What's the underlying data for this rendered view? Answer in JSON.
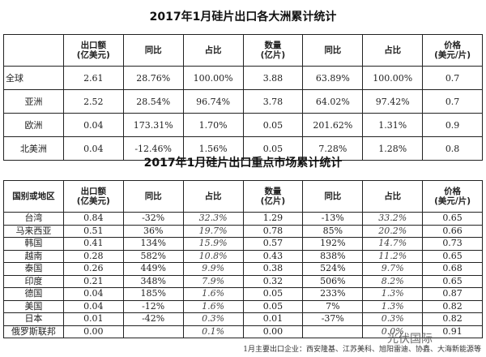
{
  "table1": {
    "title": "2017年1月硅片出口各大洲累计统计",
    "headers": [
      "",
      "出口额\n(亿美元)",
      "同比",
      "占比",
      "数量\n(亿片)",
      "同比",
      "占比",
      "价格\n(美元/片)"
    ],
    "rows": [
      [
        "全球",
        "2.61",
        "28.76%",
        "100.00%",
        "3.88",
        "63.89%",
        "100.00%",
        "0.7"
      ],
      [
        "亚洲",
        "2.52",
        "28.54%",
        "96.74%",
        "3.78",
        "64.02%",
        "97.42%",
        "0.7"
      ],
      [
        "欧洲",
        "0.04",
        "173.31%",
        "1.70%",
        "0.05",
        "201.62%",
        "1.31%",
        "0.9"
      ],
      [
        "北美洲",
        "0.04",
        "-12.46%",
        "1.56%",
        "0.05",
        "7.28%",
        "1.28%",
        "0.8"
      ]
    ]
  },
  "table2": {
    "title": "2017年1月硅片出口重点市场累计统计",
    "headers": [
      "国别或地区",
      "出口额\n(亿美元)",
      "同比",
      "占比",
      "数量\n(亿片)",
      "同比",
      "占比",
      "价格\n(美元/片)"
    ],
    "rows": [
      [
        "台湾",
        "0.84",
        "-32%",
        "32.3%",
        "1.29",
        "-13%",
        "33.2%",
        "0.65"
      ],
      [
        "马来西亚",
        "0.51",
        "36%",
        "19.7%",
        "0.78",
        "85%",
        "20.2%",
        "0.66"
      ],
      [
        "韩国",
        "0.41",
        "134%",
        "15.9%",
        "0.57",
        "192%",
        "14.7%",
        "0.73"
      ],
      [
        "越南",
        "0.28",
        "582%",
        "10.8%",
        "0.43",
        "838%",
        "11.2%",
        "0.65"
      ],
      [
        "泰国",
        "0.26",
        "449%",
        "9.9%",
        "0.38",
        "524%",
        "9.7%",
        "0.68"
      ],
      [
        "印度",
        "0.21",
        "348%",
        "7.9%",
        "0.32",
        "506%",
        "8.2%",
        "0.65"
      ],
      [
        "德国",
        "0.04",
        "185%",
        "1.6%",
        "0.05",
        "233%",
        "1.3%",
        "0.87"
      ],
      [
        "美国",
        "0.04",
        "-12%",
        "1.6%",
        "0.05",
        "7%",
        "1.3%",
        "0.82"
      ],
      [
        "日本",
        "0.01",
        "-42%",
        "0.3%",
        "0.01",
        "-37%",
        "0.3%",
        "0.82"
      ],
      [
        "俄罗斯联邦",
        "0.00",
        "",
        "0.1%",
        "0.00",
        "",
        "0.0%",
        "0.91"
      ]
    ]
  },
  "footer": "1月主要出口企业：西安隆基、江苏美科、旭阳雷迪、协鑫、大海新能源等",
  "watermark": "光伏国际"
}
